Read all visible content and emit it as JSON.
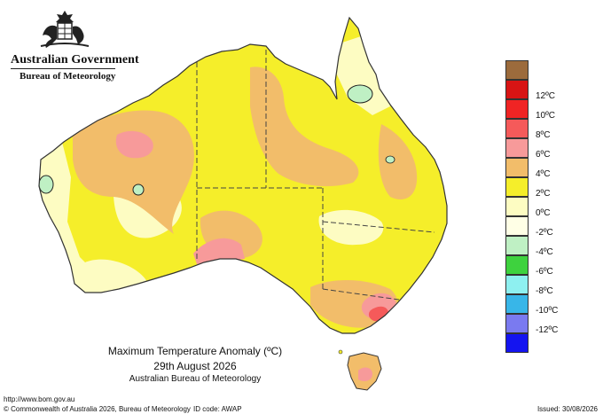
{
  "header": {
    "government": "Australian Government",
    "bureau": "Bureau of Meteorology"
  },
  "legend": {
    "entries": [
      {
        "label": "",
        "color": "#9c6b3c"
      },
      {
        "label": "12ºC",
        "color": "#d81414"
      },
      {
        "label": "10ºC",
        "color": "#f02424"
      },
      {
        "label": "8ºC",
        "color": "#f55a5a"
      },
      {
        "label": "6ºC",
        "color": "#f79a9a"
      },
      {
        "label": "4ºC",
        "color": "#f2bd6a"
      },
      {
        "label": "2ºC",
        "color": "#f5ee2a"
      },
      {
        "label": "0ºC",
        "color": "#fdfcc2"
      },
      {
        "label": "-2ºC",
        "color": "#ffffe6"
      },
      {
        "label": "-4ºC",
        "color": "#bff0c4"
      },
      {
        "label": "-6ºC",
        "color": "#3ed23e"
      },
      {
        "label": "-8ºC",
        "color": "#8ef0f0"
      },
      {
        "label": "-10ºC",
        "color": "#38b6e8"
      },
      {
        "label": "-12ºC",
        "color": "#7a7af0"
      },
      {
        "label": "",
        "color": "#1414f0"
      }
    ]
  },
  "caption": {
    "title": "Maximum Temperature Anomaly (ºC)",
    "date": "29th August 2026",
    "source": "Australian Bureau of Meteorology"
  },
  "footer": {
    "url": "http://www.bom.gov.au",
    "copyright": "© Commonwealth of Australia 2026, Bureau of Meteorology",
    "id_code": "ID code: AWAP",
    "issued": "Issued: 30/08/2026"
  }
}
